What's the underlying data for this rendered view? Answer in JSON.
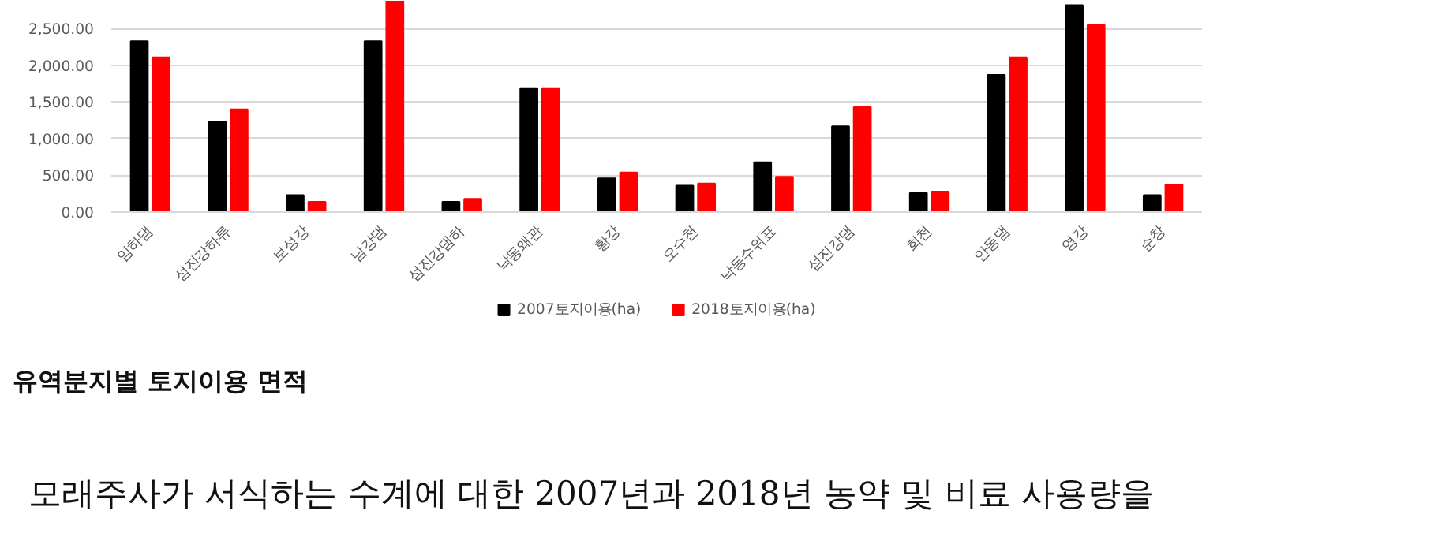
{
  "chart_data": {
    "type": "bar",
    "categories": [
      "임하댐",
      "섬진강하류",
      "보성강",
      "남강댐",
      "섬진강댐하",
      "낙동왜관",
      "황강",
      "오수천",
      "낙동수위표",
      "섬진강댐",
      "회천",
      "안동댐",
      "영강",
      "순창"
    ],
    "series": [
      {
        "name": "2007토지이용(ha)",
        "color": "#000000",
        "values": [
          2330,
          1230,
          230,
          2330,
          140,
          1690,
          460,
          360,
          680,
          1170,
          260,
          1870,
          2820,
          230
        ]
      },
      {
        "name": "2018토지이용(ha)",
        "color": "#ff0000",
        "values": [
          2110,
          1400,
          140,
          2880,
          180,
          1690,
          540,
          390,
          480,
          1430,
          280,
          2110,
          2550,
          370
        ]
      }
    ],
    "ylim": [
      0,
      2880
    ],
    "yticks": [
      {
        "value": 0,
        "label": "0.00"
      },
      {
        "value": 500,
        "label": "500.00"
      },
      {
        "value": 1000,
        "label": "1,000.00"
      },
      {
        "value": 1500,
        "label": "1,500.00"
      },
      {
        "value": 2000,
        "label": "2,000.00"
      },
      {
        "value": 2500,
        "label": "2,500.00"
      }
    ],
    "grid": "y",
    "legend": "bottom",
    "annotations": [
      "유역분지별 토지이용 면적",
      "모래주사가 서식하는 수계에 대한 2007년과 2018년 농약 및 비료 사용량을"
    ]
  }
}
